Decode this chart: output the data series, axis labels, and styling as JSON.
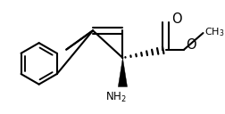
{
  "bg_color": "#ffffff",
  "line_color": "#000000",
  "line_width": 1.5,
  "font_size": 8.5,
  "figure_width": 2.52,
  "figure_height": 1.28,
  "dpi": 100
}
